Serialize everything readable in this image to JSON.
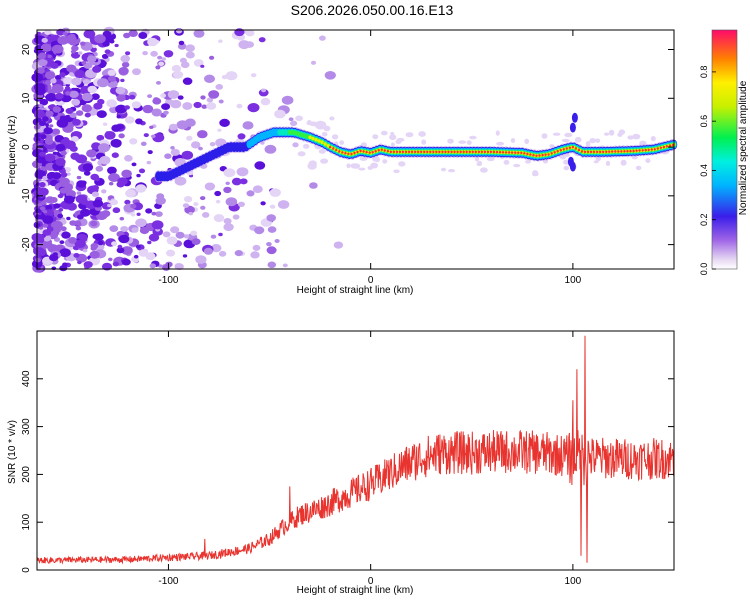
{
  "title": "S206.2026.050.00.16.E13",
  "chart_data": [
    {
      "type": "heatmap",
      "name": "spectrogram",
      "xlabel": "Height of straight line (km)",
      "ylabel": "Frequency (Hz)",
      "xlim": [
        -165,
        150
      ],
      "ylim": [
        -25,
        24
      ],
      "xticks": [
        -100,
        0,
        100
      ],
      "yticks": [
        -20,
        -10,
        0,
        10,
        20
      ],
      "ridge": [
        [
          -100,
          -6
        ],
        [
          -90,
          -4
        ],
        [
          -80,
          -2
        ],
        [
          -70,
          0
        ],
        [
          -62,
          0
        ],
        [
          -55,
          2
        ],
        [
          -48,
          3
        ],
        [
          -42,
          3
        ],
        [
          -38,
          3
        ],
        [
          -30,
          2
        ],
        [
          -24,
          1
        ],
        [
          -20,
          0
        ],
        [
          -15,
          -1
        ],
        [
          -10,
          -1.5
        ],
        [
          -5,
          -0.8
        ],
        [
          0,
          -1.2
        ],
        [
          5,
          -0.5
        ],
        [
          10,
          -1
        ],
        [
          20,
          -1
        ],
        [
          40,
          -1
        ],
        [
          60,
          -1
        ],
        [
          75,
          -1.2
        ],
        [
          82,
          -1.8
        ],
        [
          88,
          -1.5
        ],
        [
          95,
          -0.5
        ],
        [
          100,
          0
        ],
        [
          105,
          -1
        ],
        [
          115,
          -1
        ],
        [
          130,
          -0.8
        ],
        [
          140,
          -0.5
        ],
        [
          150,
          0.5
        ]
      ],
      "colorbar": {
        "label": "Normalized spectral amplitude",
        "ticks": [
          "0.0",
          "0.2",
          "0.4",
          "0.6",
          "0.8"
        ],
        "range": [
          0,
          0.97
        ]
      }
    },
    {
      "type": "line",
      "name": "snr",
      "xlabel": "Height of straight line (km)",
      "ylabel": "SNR (10 * v/v)",
      "xlim": [
        -165,
        150
      ],
      "ylim": [
        0,
        500
      ],
      "xticks": [
        -100,
        0,
        100
      ],
      "yticks": [
        0,
        100,
        200,
        300,
        400
      ],
      "color": "#e8332e",
      "trend": [
        [
          -165,
          20
        ],
        [
          -120,
          22
        ],
        [
          -80,
          30
        ],
        [
          -60,
          45
        ],
        [
          -50,
          65
        ],
        [
          -42,
          95
        ],
        [
          -35,
          115
        ],
        [
          -25,
          130
        ],
        [
          -15,
          150
        ],
        [
          -5,
          170
        ],
        [
          5,
          190
        ],
        [
          15,
          215
        ],
        [
          25,
          235
        ],
        [
          35,
          245
        ],
        [
          50,
          245
        ],
        [
          70,
          248
        ],
        [
          85,
          245
        ],
        [
          95,
          240
        ],
        [
          100,
          235
        ],
        [
          110,
          235
        ],
        [
          130,
          232
        ],
        [
          150,
          233
        ]
      ],
      "spikes": [
        [
          -82,
          65
        ],
        [
          -40,
          175
        ],
        [
          8,
          230
        ],
        [
          65,
          270
        ],
        [
          100,
          355
        ],
        [
          102,
          420
        ],
        [
          104,
          30
        ],
        [
          106,
          490
        ],
        [
          107,
          15
        ]
      ]
    }
  ]
}
